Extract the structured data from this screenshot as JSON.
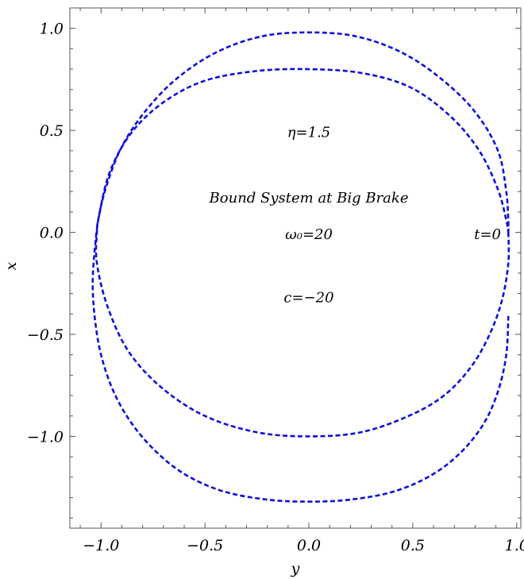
{
  "chart_data": {
    "type": "line",
    "title": "",
    "xlabel": "y",
    "ylabel": "x",
    "xlim": [
      -1.15,
      1.02
    ],
    "ylim": [
      -1.45,
      1.1
    ],
    "x_ticks": [
      -1.0,
      -0.5,
      0.0,
      0.5,
      1.0
    ],
    "y_ticks": [
      -1.0,
      -0.5,
      0.0,
      0.5,
      1.0
    ],
    "x_tick_labels": [
      "−1.0",
      "−0.5",
      "0.0",
      "0.5",
      "1.0"
    ],
    "y_tick_labels": [
      "−1.0",
      "−0.5",
      "0.0",
      "0.5",
      "1.0"
    ],
    "grid": false,
    "legend": "none",
    "line_style": "dashed",
    "series_color": "#1010d8",
    "annotations": [
      {
        "id": "eta",
        "text": "η=1.5",
        "x": 0.0,
        "y": 0.49
      },
      {
        "id": "system",
        "text": "Bound System at Big Brake",
        "x": 0.0,
        "y": 0.17
      },
      {
        "id": "omega",
        "text": "ω₀=20",
        "x": 0.0,
        "y": -0.01
      },
      {
        "id": "c",
        "text": "c=−20",
        "x": 0.0,
        "y": -0.32
      },
      {
        "id": "t0",
        "text": "t=0",
        "x": 0.86,
        "y": -0.01
      }
    ],
    "series": [
      {
        "points": [
          [
            0.96,
            -0.41
          ],
          [
            0.95,
            -0.6
          ],
          [
            0.91,
            -0.78
          ],
          [
            0.84,
            -0.94
          ],
          [
            0.73,
            -1.08
          ],
          [
            0.59,
            -1.19
          ],
          [
            0.41,
            -1.27
          ],
          [
            0.2,
            -1.31
          ],
          [
            0.0,
            -1.32
          ],
          [
            -0.2,
            -1.31
          ],
          [
            -0.41,
            -1.27
          ],
          [
            -0.59,
            -1.19
          ],
          [
            -0.73,
            -1.08
          ],
          [
            -0.85,
            -0.94
          ],
          [
            -0.94,
            -0.78
          ],
          [
            -1.0,
            -0.6
          ],
          [
            -1.03,
            -0.42
          ],
          [
            -1.04,
            -0.25
          ],
          [
            -1.03,
            -0.08
          ],
          [
            -1.01,
            0.08
          ],
          [
            -0.97,
            0.24
          ],
          [
            -0.9,
            0.42
          ],
          [
            -0.79,
            0.59
          ],
          [
            -0.64,
            0.75
          ],
          [
            -0.45,
            0.88
          ],
          [
            -0.23,
            0.96
          ],
          [
            0.0,
            0.98
          ],
          [
            0.23,
            0.96
          ],
          [
            0.45,
            0.88
          ],
          [
            0.64,
            0.75
          ],
          [
            0.8,
            0.59
          ],
          [
            0.91,
            0.4
          ],
          [
            0.95,
            0.2
          ],
          [
            0.96,
            0.05
          ],
          [
            0.96,
            0.0
          ]
        ]
      },
      {
        "points": [
          [
            0.96,
            0.0
          ],
          [
            0.96,
            -0.15
          ],
          [
            0.93,
            -0.33
          ],
          [
            0.87,
            -0.5
          ],
          [
            0.78,
            -0.66
          ],
          [
            0.65,
            -0.8
          ],
          [
            0.48,
            -0.9
          ],
          [
            0.25,
            -0.98
          ],
          [
            0.0,
            -1.0
          ],
          [
            -0.25,
            -0.98
          ],
          [
            -0.5,
            -0.9
          ],
          [
            -0.71,
            -0.76
          ],
          [
            -0.87,
            -0.58
          ],
          [
            -0.97,
            -0.36
          ],
          [
            -1.02,
            -0.15
          ],
          [
            -1.02,
            0.0
          ],
          [
            -1.01,
            0.08
          ],
          [
            -0.96,
            0.29
          ],
          [
            -0.86,
            0.48
          ],
          [
            -0.71,
            0.63
          ],
          [
            -0.51,
            0.74
          ],
          [
            -0.26,
            0.79
          ],
          [
            0.0,
            0.8
          ],
          [
            0.26,
            0.78
          ],
          [
            0.49,
            0.71
          ],
          [
            0.68,
            0.57
          ],
          [
            0.82,
            0.4
          ],
          [
            0.91,
            0.21
          ],
          [
            0.95,
            0.06
          ],
          [
            0.96,
            0.0
          ]
        ]
      }
    ]
  }
}
